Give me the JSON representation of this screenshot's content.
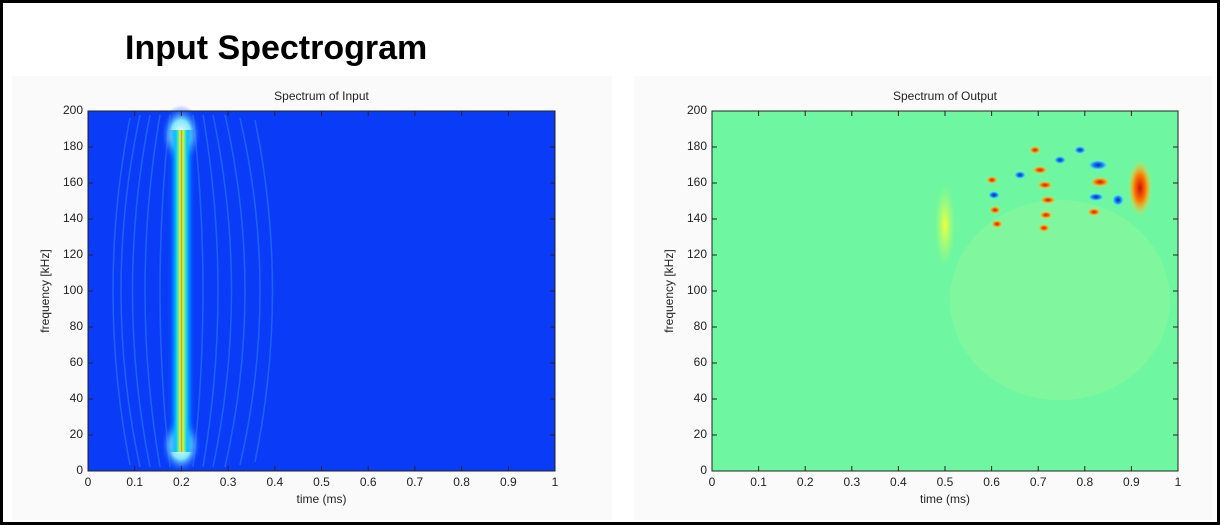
{
  "header": {
    "title": "Input Spectrogram"
  },
  "chart_data": [
    {
      "type": "heatmap",
      "title": "Spectrum of Input",
      "xlabel": "time (ms)",
      "ylabel": "frequency [kHz]",
      "xlim": [
        0,
        1
      ],
      "ylim": [
        0,
        200
      ],
      "xticks": [
        0,
        0.1,
        0.2,
        0.3,
        0.4,
        0.5,
        0.6,
        0.7,
        0.8,
        0.9,
        1
      ],
      "yticks": [
        0,
        20,
        40,
        60,
        80,
        100,
        120,
        140,
        160,
        180,
        200
      ]
    },
    {
      "type": "heatmap",
      "title": "Spectrum of Output",
      "xlabel": "time (ms)",
      "ylabel": "frequency [kHz]",
      "xlim": [
        0,
        1
      ],
      "ylim": [
        0,
        200
      ],
      "xticks": [
        0,
        0.1,
        0.2,
        0.3,
        0.4,
        0.5,
        0.6,
        0.7,
        0.8,
        0.9,
        1
      ],
      "yticks": [
        0,
        20,
        40,
        60,
        80,
        100,
        120,
        140,
        160,
        180,
        200
      ]
    }
  ]
}
